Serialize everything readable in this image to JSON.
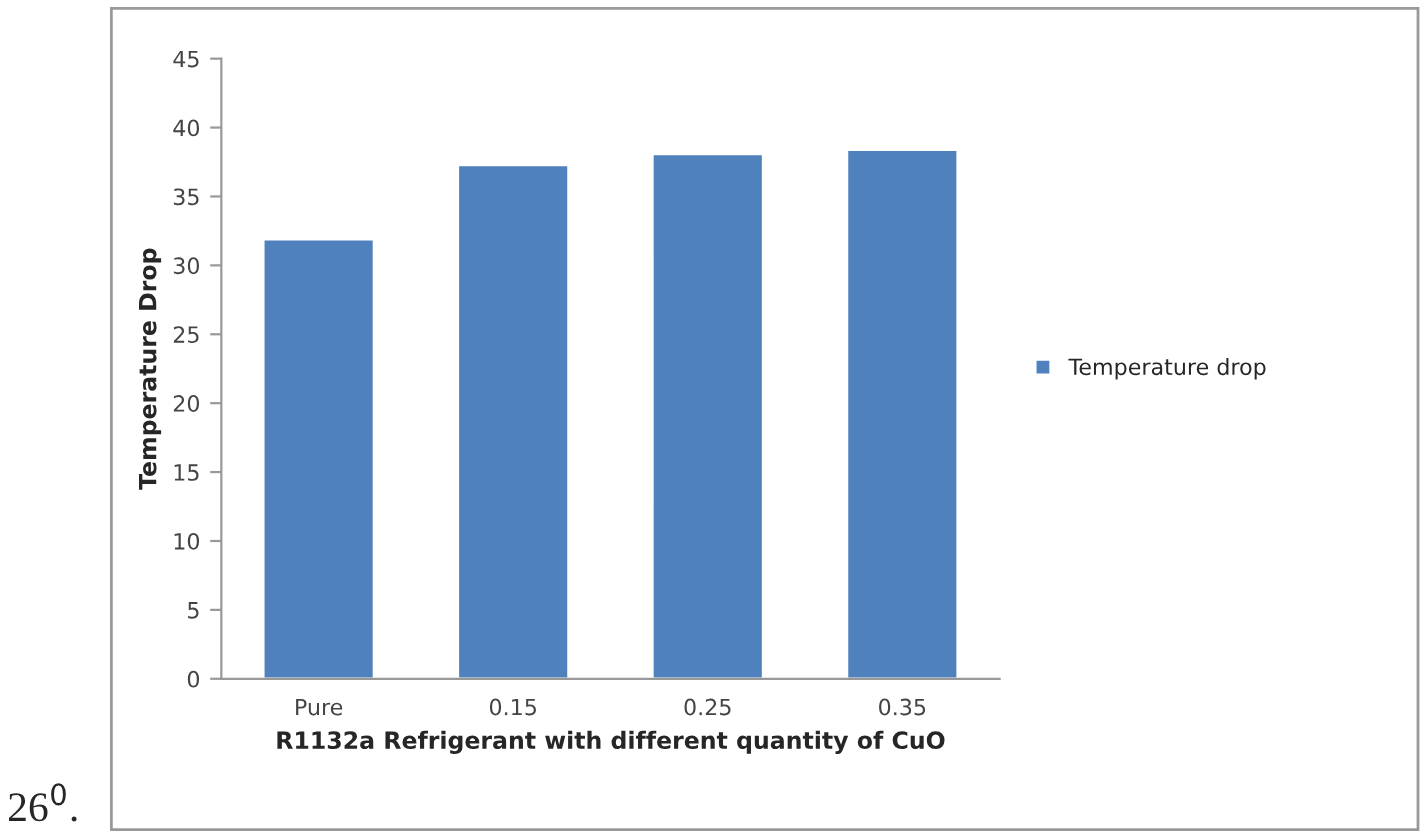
{
  "chart_data": {
    "type": "bar",
    "xlabel": "R1132a Refrigerant with different quantity of CuO",
    "ylabel": "Temperature Drop",
    "categories": [
      "Pure",
      "0.15",
      "0.25",
      "0.35"
    ],
    "series": [
      {
        "name": "Temperature drop",
        "color": "#4f81bd",
        "values": [
          31.9,
          37.3,
          38.1,
          38.4
        ]
      }
    ],
    "ylim": [
      0,
      45
    ],
    "yticks": [
      0,
      5,
      10,
      15,
      20,
      25,
      30,
      35,
      40,
      45
    ],
    "grid": false,
    "legend": "right",
    "annotations": [
      "26$^{0}$."
    ]
  }
}
